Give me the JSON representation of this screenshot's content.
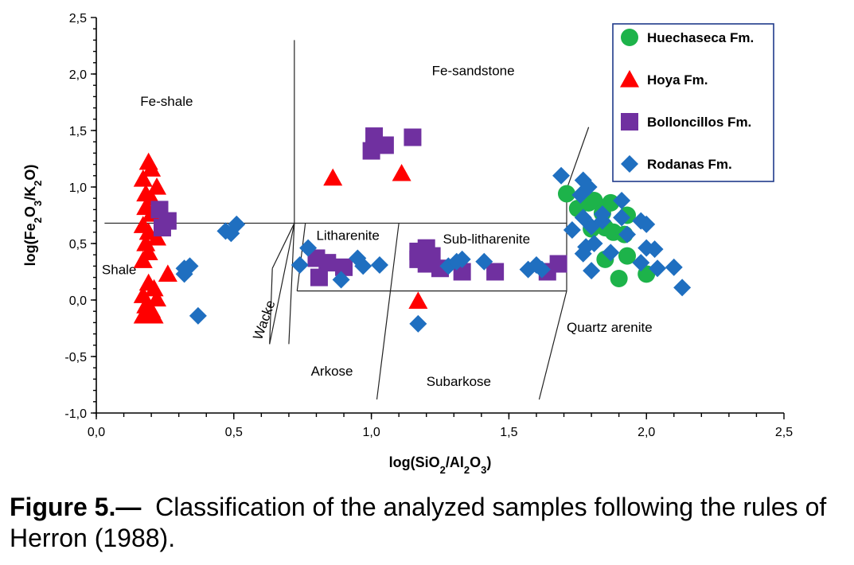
{
  "caption": {
    "label": "Figure 5.—",
    "text": "Classification of the analyzed samples following the rules of Herron (1988)."
  },
  "colors": {
    "huechaseca": "#1db34a",
    "hoya": "#ff0000",
    "bolloncillos": "#7030a0",
    "rodanas": "#1f6fc0"
  },
  "chart_data": {
    "type": "scatter",
    "title": "",
    "xlabel_parts": [
      {
        "t": "log(SiO",
        "sub": false
      },
      {
        "t": "2",
        "sub": true
      },
      {
        "t": "/Al",
        "sub": false
      },
      {
        "t": "2",
        "sub": true
      },
      {
        "t": "O",
        "sub": false
      },
      {
        "t": "3",
        "sub": true
      },
      {
        "t": ")",
        "sub": false
      }
    ],
    "ylabel_parts": [
      {
        "t": "log(Fe",
        "sub": false
      },
      {
        "t": "2",
        "sub": true
      },
      {
        "t": "O",
        "sub": false
      },
      {
        "t": "3",
        "sub": true
      },
      {
        "t": "/K",
        "sub": false
      },
      {
        "t": "2",
        "sub": true
      },
      {
        "t": "O)",
        "sub": false
      }
    ],
    "xlim": [
      0,
      2.5
    ],
    "ylim": [
      -1,
      2.5
    ],
    "xticks": [
      0,
      0.5,
      1.0,
      1.5,
      2.0,
      2.5
    ],
    "xtick_labels": [
      "0,0",
      "0,5",
      "1,0",
      "1,5",
      "2,0",
      "2,5"
    ],
    "yticks": [
      -1,
      -0.5,
      0,
      0.5,
      1.0,
      1.5,
      2.0,
      2.5
    ],
    "ytick_labels": [
      "-1,0",
      "-0,5",
      "0,0",
      "0,5",
      "1,0",
      "1,5",
      "2,0",
      "2,5"
    ],
    "legend_position": "top-right",
    "grid": false,
    "field_labels": [
      {
        "text": "Fe-shale",
        "x": 0.16,
        "y": 1.72
      },
      {
        "text": "Fe-sandstone",
        "x": 1.22,
        "y": 1.99
      },
      {
        "text": "Shale",
        "x": 0.02,
        "y": 0.23
      },
      {
        "text": "Litharenite",
        "x": 0.8,
        "y": 0.53
      },
      {
        "text": "Sub-litharenite",
        "x": 1.26,
        "y": 0.5
      },
      {
        "text": "Wacke",
        "x": 0.6,
        "y": -0.36,
        "rotate": -70
      },
      {
        "text": "Quartz arenite",
        "x": 1.71,
        "y": -0.28
      },
      {
        "text": "Arkose",
        "x": 0.78,
        "y": -0.67
      },
      {
        "text": "Subarkose",
        "x": 1.2,
        "y": -0.76
      }
    ],
    "field_lines": [
      {
        "x1": 0.03,
        "y1": 0.68,
        "x2": 1.71,
        "y2": 0.68
      },
      {
        "x1": 0.72,
        "y1": 2.3,
        "x2": 0.72,
        "y2": 0.68
      },
      {
        "x1": 0.72,
        "y1": 0.68,
        "x2": 0.64,
        "y2": 0.28
      },
      {
        "x1": 0.64,
        "y1": 0.28,
        "x2": 0.63,
        "y2": -0.39
      },
      {
        "x1": 0.72,
        "y1": 0.68,
        "x2": 0.7,
        "y2": -0.39
      },
      {
        "x1": 0.72,
        "y1": 0.68,
        "x2": 0.63,
        "y2": -0.39
      },
      {
        "x1": 0.76,
        "y1": 0.68,
        "x2": 0.73,
        "y2": 0.08
      },
      {
        "x1": 0.73,
        "y1": 0.08,
        "x2": 1.71,
        "y2": 0.08
      },
      {
        "x1": 1.71,
        "y1": 0.68,
        "x2": 1.71,
        "y2": 0.08
      },
      {
        "x1": 1.1,
        "y1": 0.68,
        "x2": 1.02,
        "y2": -0.88
      },
      {
        "x1": 1.71,
        "y1": 0.08,
        "x2": 1.61,
        "y2": -0.88
      },
      {
        "x1": 1.79,
        "y1": 1.53,
        "x2": 1.71,
        "y2": 0.98
      },
      {
        "x1": 1.71,
        "y1": 0.98,
        "x2": 1.71,
        "y2": 0.68
      }
    ],
    "series": [
      {
        "name": "Huechaseca Fm.",
        "marker": "circle",
        "points": [
          [
            1.71,
            0.94
          ],
          [
            1.75,
            0.81
          ],
          [
            1.79,
            0.86
          ],
          [
            1.81,
            0.88
          ],
          [
            1.84,
            0.77
          ],
          [
            1.87,
            0.86
          ],
          [
            1.93,
            0.75
          ],
          [
            1.8,
            0.63
          ],
          [
            1.85,
            0.64
          ],
          [
            1.88,
            0.6
          ],
          [
            1.92,
            0.58
          ],
          [
            1.85,
            0.36
          ],
          [
            1.93,
            0.39
          ],
          [
            1.9,
            0.19
          ],
          [
            2.0,
            0.23
          ]
        ]
      },
      {
        "name": "Hoya Fm.",
        "marker": "triangle",
        "points": [
          [
            0.17,
            1.07
          ],
          [
            0.19,
            1.22
          ],
          [
            0.2,
            1.16
          ],
          [
            0.22,
            1.0
          ],
          [
            0.18,
            0.94
          ],
          [
            0.2,
            0.9
          ],
          [
            0.18,
            0.82
          ],
          [
            0.2,
            0.76
          ],
          [
            0.17,
            0.66
          ],
          [
            0.19,
            0.6
          ],
          [
            0.22,
            0.55
          ],
          [
            0.18,
            0.5
          ],
          [
            0.19,
            0.42
          ],
          [
            0.17,
            0.35
          ],
          [
            0.26,
            0.23
          ],
          [
            0.19,
            0.15
          ],
          [
            0.21,
            0.1
          ],
          [
            0.17,
            0.04
          ],
          [
            0.22,
            0.01
          ],
          [
            0.18,
            -0.05
          ],
          [
            0.2,
            -0.09
          ],
          [
            0.17,
            -0.14
          ],
          [
            0.21,
            -0.14
          ],
          [
            0.86,
            1.08
          ],
          [
            1.11,
            1.12
          ],
          [
            1.17,
            -0.01
          ]
        ]
      },
      {
        "name": "Bolloncillos Fm.",
        "marker": "square",
        "points": [
          [
            0.23,
            0.8
          ],
          [
            0.26,
            0.7
          ],
          [
            0.24,
            0.64
          ],
          [
            1.01,
            1.45
          ],
          [
            1.05,
            1.37
          ],
          [
            1.0,
            1.32
          ],
          [
            1.15,
            1.44
          ],
          [
            0.8,
            0.37
          ],
          [
            0.84,
            0.33
          ],
          [
            0.9,
            0.29
          ],
          [
            0.81,
            0.2
          ],
          [
            1.17,
            0.43
          ],
          [
            1.2,
            0.46
          ],
          [
            1.17,
            0.36
          ],
          [
            1.2,
            0.32
          ],
          [
            1.22,
            0.39
          ],
          [
            1.25,
            0.28
          ],
          [
            1.33,
            0.25
          ],
          [
            1.45,
            0.25
          ],
          [
            1.64,
            0.25
          ],
          [
            1.68,
            0.32
          ]
        ]
      },
      {
        "name": "Rodanas Fm.",
        "marker": "diamond",
        "points": [
          [
            0.47,
            0.61
          ],
          [
            0.49,
            0.59
          ],
          [
            0.51,
            0.67
          ],
          [
            0.32,
            0.23
          ],
          [
            0.34,
            0.3
          ],
          [
            0.32,
            0.28
          ],
          [
            0.37,
            -0.14
          ],
          [
            0.74,
            0.31
          ],
          [
            0.77,
            0.46
          ],
          [
            0.89,
            0.18
          ],
          [
            0.95,
            0.37
          ],
          [
            0.97,
            0.3
          ],
          [
            1.03,
            0.31
          ],
          [
            1.17,
            -0.21
          ],
          [
            1.28,
            0.3
          ],
          [
            1.31,
            0.34
          ],
          [
            1.33,
            0.36
          ],
          [
            1.41,
            0.34
          ],
          [
            1.57,
            0.27
          ],
          [
            1.6,
            0.31
          ],
          [
            1.62,
            0.27
          ],
          [
            1.69,
            1.1
          ],
          [
            1.77,
            1.06
          ],
          [
            1.79,
            1.0
          ],
          [
            1.76,
            0.93
          ],
          [
            1.77,
            0.73
          ],
          [
            1.8,
            0.65
          ],
          [
            1.84,
            0.7
          ],
          [
            1.84,
            0.76
          ],
          [
            1.91,
            0.88
          ],
          [
            1.91,
            0.73
          ],
          [
            1.98,
            0.7
          ],
          [
            2.0,
            0.67
          ],
          [
            1.73,
            0.62
          ],
          [
            1.81,
            0.5
          ],
          [
            1.78,
            0.47
          ],
          [
            1.77,
            0.41
          ],
          [
            1.87,
            0.42
          ],
          [
            1.93,
            0.58
          ],
          [
            2.0,
            0.46
          ],
          [
            2.03,
            0.45
          ],
          [
            1.98,
            0.33
          ],
          [
            2.04,
            0.28
          ],
          [
            2.1,
            0.29
          ],
          [
            1.8,
            0.26
          ],
          [
            2.13,
            0.11
          ]
        ]
      }
    ]
  }
}
